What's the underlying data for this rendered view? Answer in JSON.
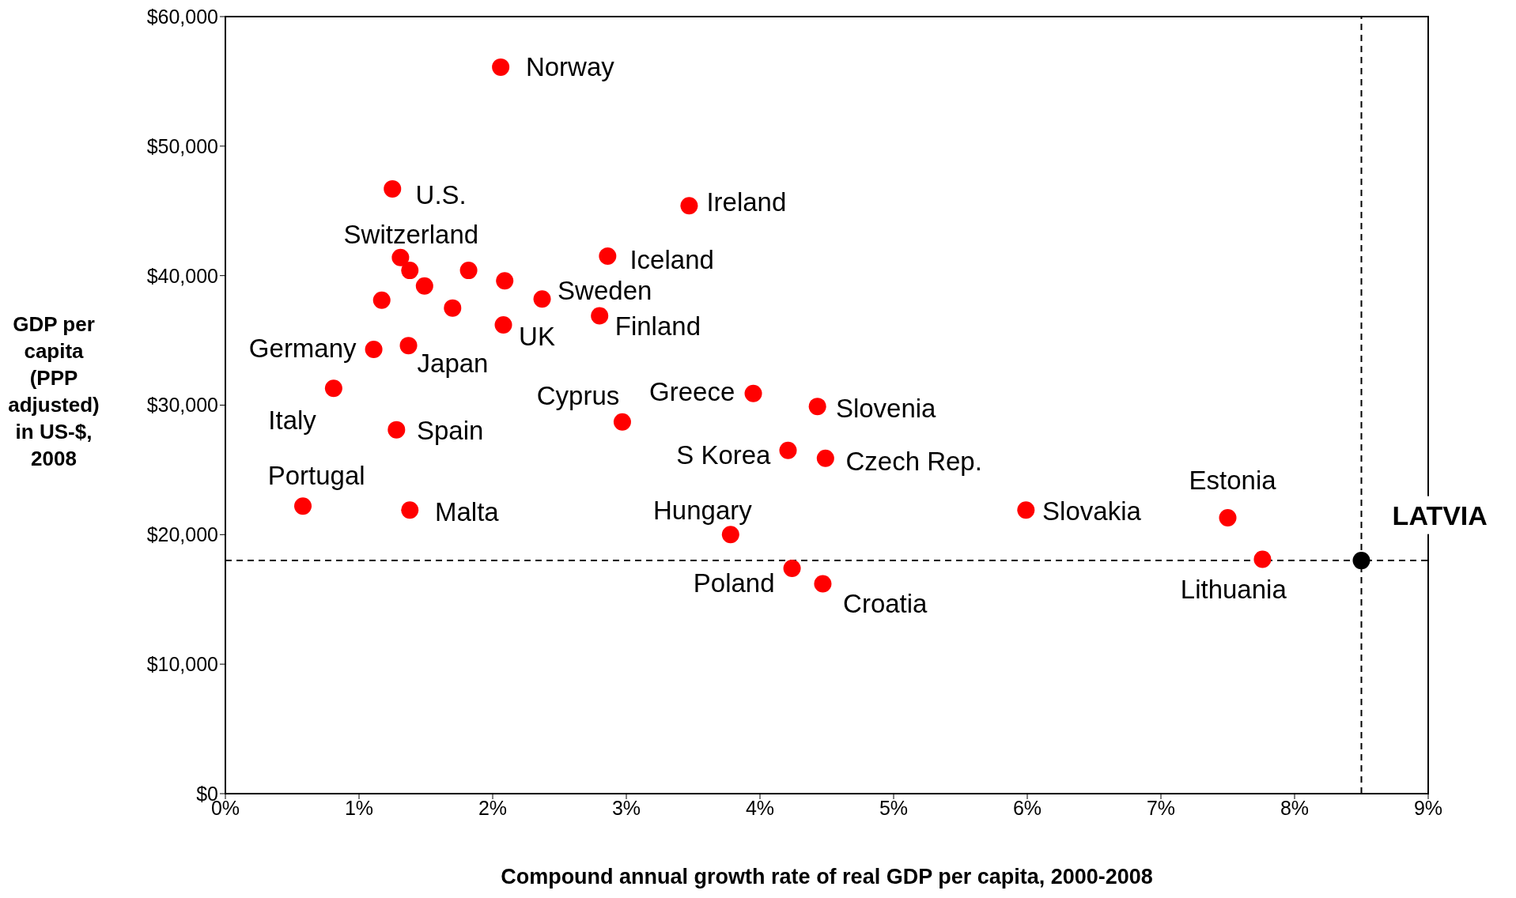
{
  "chart_data": {
    "type": "scatter",
    "xlabel": "Compound annual growth rate of real GDP per capita, 2000-2008",
    "ylabel": "GDP per capita (PPP adjusted) in US-$, 2008",
    "marker": "circle",
    "xlim": [
      0,
      9
    ],
    "ylim": [
      0,
      60000
    ],
    "xticks": [
      {
        "value": 0,
        "label": "0%"
      },
      {
        "value": 1,
        "label": "1%"
      },
      {
        "value": 2,
        "label": "2%"
      },
      {
        "value": 3,
        "label": "3%"
      },
      {
        "value": 4,
        "label": "4%"
      },
      {
        "value": 5,
        "label": "5%"
      },
      {
        "value": 6,
        "label": "6%"
      },
      {
        "value": 7,
        "label": "7%"
      },
      {
        "value": 8,
        "label": "8%"
      },
      {
        "value": 9,
        "label": "9%"
      }
    ],
    "yticks": [
      {
        "value": 0,
        "label": "$0"
      },
      {
        "value": 10000,
        "label": "$10,000"
      },
      {
        "value": 20000,
        "label": "$20,000"
      },
      {
        "value": 30000,
        "label": "$30,000"
      },
      {
        "value": 40000,
        "label": "$40,000"
      },
      {
        "value": 50000,
        "label": "$50,000"
      },
      {
        "value": 60000,
        "label": "$60,000"
      }
    ],
    "series": [
      {
        "color": "#ff0000",
        "x": [
          2.06,
          1.25,
          3.47,
          1.31,
          1.38,
          1.49,
          1.82,
          2.09,
          1.17,
          1.7,
          2.86,
          2.37,
          2.8,
          2.08,
          1.11,
          1.37,
          0.81,
          1.28,
          2.97,
          3.95,
          4.43,
          4.21,
          4.49,
          0.58,
          1.38,
          3.78,
          5.99,
          7.5,
          7.76,
          4.24,
          4.47
        ],
        "values": [
          56100,
          46700,
          45400,
          41400,
          40400,
          39200,
          40400,
          39600,
          38100,
          37500,
          41500,
          38200,
          36900,
          36200,
          34300,
          34600,
          31300,
          28100,
          28700,
          30900,
          29900,
          26500,
          25900,
          22200,
          21900,
          20000,
          21900,
          21300,
          18100,
          17400,
          16200
        ]
      },
      {
        "color": "#000000",
        "x": [
          8.5
        ],
        "values": [
          18000
        ]
      }
    ],
    "ref_lines": [
      {
        "axis": "x",
        "value": 8.5,
        "line_style": "dashed"
      },
      {
        "axis": "y",
        "value": 18000,
        "line_style": "dashed"
      }
    ],
    "annotations": [
      {
        "text": "Norway",
        "x": 2.06,
        "y": 56100
      },
      {
        "text": "U.S.",
        "x": 1.25,
        "y": 46700
      },
      {
        "text": "Ireland",
        "x": 3.47,
        "y": 45400
      },
      {
        "text": "Switzerland",
        "x": 1.31,
        "y": 41400
      },
      {
        "text": "Iceland",
        "x": 2.86,
        "y": 41500
      },
      {
        "text": "Sweden",
        "x": 2.37,
        "y": 38200
      },
      {
        "text": "Finland",
        "x": 2.8,
        "y": 36900
      },
      {
        "text": "UK",
        "x": 2.08,
        "y": 36200
      },
      {
        "text": "Germany",
        "x": 1.11,
        "y": 34300
      },
      {
        "text": "Japan",
        "x": 1.37,
        "y": 34600
      },
      {
        "text": "Italy",
        "x": 0.81,
        "y": 31300
      },
      {
        "text": "Spain",
        "x": 1.28,
        "y": 28100
      },
      {
        "text": "Cyprus",
        "x": 2.97,
        "y": 28700
      },
      {
        "text": "Greece",
        "x": 3.95,
        "y": 30900
      },
      {
        "text": "Slovenia",
        "x": 4.43,
        "y": 29900
      },
      {
        "text": "S Korea",
        "x": 4.21,
        "y": 26500
      },
      {
        "text": "Czech Rep.",
        "x": 4.49,
        "y": 25900
      },
      {
        "text": "Portugal",
        "x": 0.58,
        "y": 22200
      },
      {
        "text": "Malta",
        "x": 1.38,
        "y": 21900
      },
      {
        "text": "Hungary",
        "x": 3.78,
        "y": 20000
      },
      {
        "text": "Slovakia",
        "x": 5.99,
        "y": 21900
      },
      {
        "text": "Estonia",
        "x": 7.5,
        "y": 21300
      },
      {
        "text": "Lithuania",
        "x": 7.76,
        "y": 18100
      },
      {
        "text": "Poland",
        "x": 4.24,
        "y": 17400
      },
      {
        "text": "Croatia",
        "x": 4.47,
        "y": 16200
      },
      {
        "text": "LATVIA",
        "x": 8.5,
        "y": 18000
      }
    ]
  }
}
